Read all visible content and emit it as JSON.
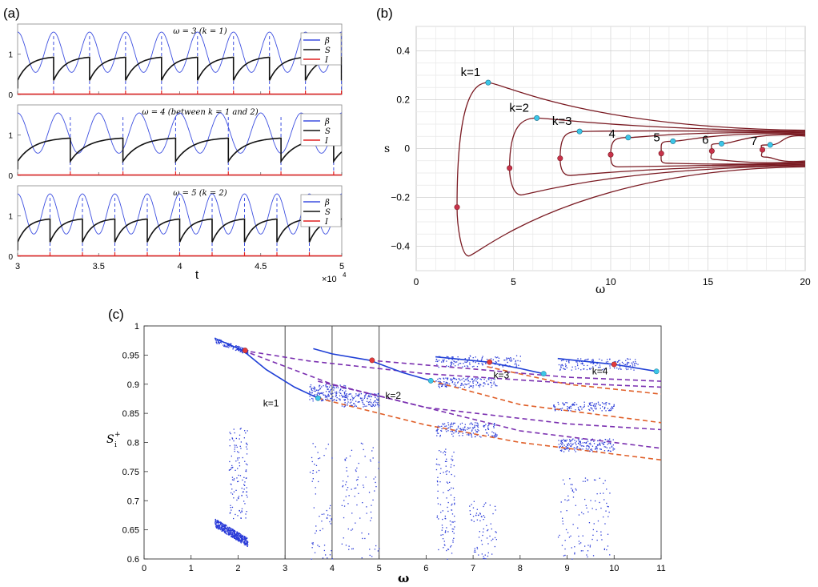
{
  "panels": {
    "a": {
      "label": "(a)",
      "xlabel": "t",
      "xticks": [
        "3",
        "3.5",
        "4",
        "4.5",
        "5"
      ],
      "xexp": "×10",
      "xexp_power": "4",
      "subplots": [
        {
          "title": "ω = 3 (k = 1)",
          "legend": [
            "β",
            "S",
            "I"
          ],
          "yticks": [
            "0",
            "1"
          ],
          "period": 0.222
        },
        {
          "title": "ω = 4 (between k = 1 and 2)",
          "legend": [
            "β",
            "S",
            "I"
          ],
          "yticks": [
            "0",
            "1"
          ],
          "period": 0.25
        },
        {
          "title": "ω = 5 (k = 2)",
          "legend": [
            "β",
            "S",
            "I"
          ],
          "yticks": [
            "0",
            "1"
          ],
          "period": 0.2
        }
      ]
    },
    "b": {
      "label": "(b)",
      "xlabel": "ω",
      "ylabel": "s",
      "xticks": [
        "0",
        "5",
        "10",
        "15",
        "20"
      ],
      "yticks": [
        "0.4",
        "0.2",
        "0",
        "−0.2",
        "−0.4"
      ],
      "curve_labels": [
        "k=1",
        "k=2",
        "k=3",
        "4",
        "5",
        "6",
        "7"
      ]
    },
    "c": {
      "label": "(c)",
      "xlabel": "ω",
      "ylabel": "S",
      "ylabel_sub": "i",
      "ylabel_sup": "+",
      "xticks": [
        "0",
        "1",
        "2",
        "3",
        "4",
        "5",
        "6",
        "7",
        "8",
        "9",
        "10",
        "11"
      ],
      "yticks": [
        "1",
        "0.95",
        "0.9",
        "0.85",
        "0.8",
        "0.75",
        "0.7",
        "0.65",
        "0.6"
      ],
      "branch_labels": [
        "k=1",
        "k=2",
        "k=3",
        "k=4"
      ]
    }
  },
  "chart_data": [
    {
      "panel": "a",
      "type": "line",
      "xlabel": "t",
      "xlim": [
        30000,
        50000
      ],
      "ylim": [
        0,
        1.7
      ],
      "series": [
        {
          "name": "β"
        },
        {
          "name": "S"
        },
        {
          "name": "I"
        }
      ],
      "colors": {
        "beta": "#3d4fe0",
        "S": "#111111",
        "I": "#e02020"
      }
    },
    {
      "panel": "b",
      "type": "line",
      "xlabel": "ω",
      "ylabel": "s",
      "xlim": [
        0,
        20
      ],
      "ylim": [
        -0.5,
        0.5
      ],
      "grid": true,
      "curves": [
        {
          "label": "k=1",
          "tip": [
            2.1,
            -0.24
          ],
          "top": [
            3.7,
            0.27
          ],
          "bottom": [
            2.7,
            -0.44
          ],
          "cyan": [
            3.7,
            0.27
          ],
          "red": [
            2.1,
            -0.24
          ]
        },
        {
          "label": "k=2",
          "tip": [
            4.8,
            -0.08
          ],
          "top": [
            6.2,
            0.125
          ],
          "bottom": [
            5.4,
            -0.19
          ],
          "cyan": [
            6.2,
            0.125
          ],
          "red": [
            4.8,
            -0.08
          ]
        },
        {
          "label": "k=3",
          "tip": [
            7.4,
            -0.04
          ],
          "top": [
            8.4,
            0.07
          ],
          "bottom": [
            7.9,
            -0.11
          ],
          "cyan": [
            8.4,
            0.07
          ],
          "red": [
            7.4,
            -0.04
          ]
        },
        {
          "label": "4",
          "tip": [
            10.0,
            -0.025
          ],
          "top": [
            10.9,
            0.045
          ],
          "bottom": [
            10.4,
            -0.075
          ],
          "cyan": [
            10.9,
            0.045
          ],
          "red": [
            10.0,
            -0.025
          ]
        },
        {
          "label": "5",
          "tip": [
            12.6,
            -0.02
          ],
          "top": [
            13.2,
            0.03
          ],
          "bottom": [
            12.9,
            -0.06
          ],
          "cyan": [
            13.2,
            0.03
          ],
          "red": [
            12.6,
            -0.02
          ]
        },
        {
          "label": "6",
          "tip": [
            15.2,
            -0.01
          ],
          "top": [
            15.7,
            0.02
          ],
          "bottom": [
            15.4,
            -0.045
          ],
          "cyan": [
            15.7,
            0.02
          ],
          "red": [
            15.2,
            -0.01
          ]
        },
        {
          "label": "7",
          "tip": [
            17.8,
            -0.005
          ],
          "top": [
            18.2,
            0.015
          ],
          "bottom": [
            18.0,
            -0.035
          ],
          "cyan": [
            18.2,
            0.015
          ],
          "red": [
            17.8,
            -0.005
          ]
        }
      ],
      "colors": {
        "curve": "#7a1a22",
        "cyan": "#3cc6e8",
        "red": "#c8324a"
      }
    },
    {
      "panel": "c",
      "type": "scatter",
      "xlabel": "ω",
      "xlim": [
        0,
        11
      ],
      "ylim": [
        0.6,
        1.0
      ],
      "vlines": [
        3,
        4,
        5
      ],
      "solid_branches": [
        {
          "label": "k=1",
          "points": [
            [
              1.5,
              0.979
            ],
            [
              2.1,
              0.958
            ],
            [
              2.6,
              0.925
            ],
            [
              3.2,
              0.895
            ],
            [
              3.7,
              0.876
            ]
          ]
        },
        {
          "label": "k=2",
          "points": [
            [
              3.6,
              0.961
            ],
            [
              4.0,
              0.952
            ],
            [
              4.8,
              0.941
            ],
            [
              5.5,
              0.92
            ],
            [
              6.1,
              0.906
            ]
          ]
        },
        {
          "label": "k=3",
          "points": [
            [
              6.2,
              0.947
            ],
            [
              7.3,
              0.938
            ],
            [
              8.0,
              0.927
            ],
            [
              8.5,
              0.918
            ]
          ]
        },
        {
          "label": "k=4",
          "points": [
            [
              8.8,
              0.944
            ],
            [
              10.0,
              0.934
            ],
            [
              10.9,
              0.922
            ]
          ]
        }
      ],
      "dashed_purple": [
        {
          "points": [
            [
              2.1,
              0.958
            ],
            [
              3.5,
              0.94
            ],
            [
              6,
              0.918
            ],
            [
              9,
              0.902
            ],
            [
              11,
              0.895
            ]
          ]
        },
        {
          "points": [
            [
              3.7,
              0.905
            ],
            [
              6,
              0.86
            ],
            [
              9,
              0.832
            ],
            [
              11,
              0.822
            ]
          ]
        },
        {
          "points": [
            [
              4.8,
              0.941
            ],
            [
              7,
              0.926
            ],
            [
              9,
              0.912
            ],
            [
              11,
              0.905
            ]
          ]
        },
        {
          "points": [
            [
              2.1,
              0.958
            ],
            [
              4,
              0.9
            ],
            [
              6,
              0.86
            ],
            [
              8,
              0.82
            ],
            [
              11,
              0.79
            ]
          ]
        }
      ],
      "dashed_orange": [
        {
          "points": [
            [
              3.7,
              0.876
            ],
            [
              6,
              0.83
            ],
            [
              8,
              0.8
            ],
            [
              11,
              0.77
            ]
          ]
        },
        {
          "points": [
            [
              6.1,
              0.906
            ],
            [
              8,
              0.865
            ],
            [
              11,
              0.834
            ]
          ]
        },
        {
          "points": [
            [
              7.3,
              0.93
            ],
            [
              9,
              0.9
            ],
            [
              11,
              0.883
            ]
          ]
        }
      ],
      "red_points": [
        [
          2.15,
          0.958
        ],
        [
          4.85,
          0.941
        ],
        [
          7.35,
          0.938
        ],
        [
          10.0,
          0.934
        ]
      ],
      "cyan_points": [
        [
          3.7,
          0.876
        ],
        [
          6.1,
          0.906
        ],
        [
          8.5,
          0.918
        ],
        [
          10.9,
          0.922
        ]
      ],
      "scatter_clusters": [
        {
          "x": [
            1.5,
            2.2
          ],
          "y": [
            0.628,
            0.67
          ],
          "n": 500,
          "dense": true
        },
        {
          "x": [
            1.8,
            2.2
          ],
          "y": [
            0.67,
            0.83
          ],
          "n": 120
        },
        {
          "x": [
            1.5,
            2.2
          ],
          "y": [
            0.955,
            0.98
          ],
          "n": 120,
          "dense": true
        },
        {
          "x": [
            3.5,
            4.0
          ],
          "y": [
            0.6,
            0.8
          ],
          "n": 60
        },
        {
          "x": [
            3.5,
            4.3
          ],
          "y": [
            0.872,
            0.9
          ],
          "n": 160
        },
        {
          "x": [
            4.2,
            5.0
          ],
          "y": [
            0.6,
            0.8
          ],
          "n": 90
        },
        {
          "x": [
            4.2,
            5.0
          ],
          "y": [
            0.862,
            0.885
          ],
          "n": 130
        },
        {
          "x": [
            6.2,
            6.6
          ],
          "y": [
            0.6,
            0.79
          ],
          "n": 110
        },
        {
          "x": [
            6.2,
            7.5
          ],
          "y": [
            0.81,
            0.835
          ],
          "n": 160
        },
        {
          "x": [
            6.9,
            7.5
          ],
          "y": [
            0.6,
            0.7
          ],
          "n": 70
        },
        {
          "x": [
            6.2,
            7.5
          ],
          "y": [
            0.895,
            0.912
          ],
          "n": 140
        },
        {
          "x": [
            8.8,
            9.9
          ],
          "y": [
            0.6,
            0.74
          ],
          "n": 110
        },
        {
          "x": [
            8.8,
            10.0
          ],
          "y": [
            0.785,
            0.807
          ],
          "n": 180
        },
        {
          "x": [
            8.7,
            10.0
          ],
          "y": [
            0.855,
            0.87
          ],
          "n": 120
        },
        {
          "x": [
            6.2,
            8.0
          ],
          "y": [
            0.93,
            0.95
          ],
          "n": 140
        },
        {
          "x": [
            8.8,
            10.5
          ],
          "y": [
            0.925,
            0.945
          ],
          "n": 140
        }
      ],
      "colors": {
        "solid": "#1f3fd6",
        "purple": "#7a2fb0",
        "orange": "#e0602a",
        "scatter": "#2a3bd8",
        "vline": "#444444",
        "red": "#e23b3b",
        "cyan": "#3cc6e8"
      }
    }
  ]
}
